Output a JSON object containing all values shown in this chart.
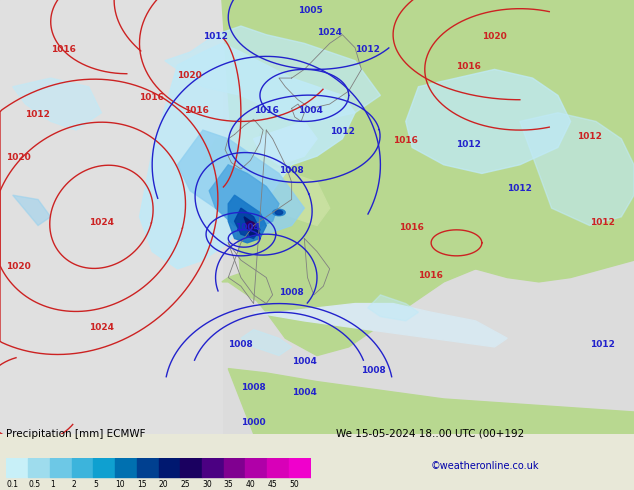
{
  "title_left": "Precipitation [mm] ECMWF",
  "title_right": "We 15-05-2024 18..00 UTC (00+192",
  "watermark": "©weatheronline.co.uk",
  "colorbar_labels": [
    "0.1",
    "0.5",
    "1",
    "2",
    "5",
    "10",
    "15",
    "20",
    "25",
    "30",
    "35",
    "40",
    "45",
    "50"
  ],
  "colorbar_colors": [
    "#c8f0f8",
    "#9edced",
    "#6dc8e6",
    "#3cb4dc",
    "#0fa0d0",
    "#0070b0",
    "#004090",
    "#001870",
    "#1a0060",
    "#4b0082",
    "#800090",
    "#b000a8",
    "#d800b8",
    "#f000cc"
  ],
  "bg_color": "#e8e8d8",
  "land_green": "#b8d890",
  "land_light_green": "#c8e0a0",
  "ocean_grey": "#dcdcdc",
  "ocean_light": "#e8e8e8",
  "precip_c1": "#c0eaf8",
  "precip_c2": "#90d0f0",
  "precip_c3": "#50a8e0",
  "precip_c4": "#1878c8",
  "precip_c5": "#0040a0",
  "precip_c6": "#001870",
  "precip_c7": "#300060",
  "blue_isobar": "#2222cc",
  "red_isobar": "#cc2222",
  "figsize": [
    6.34,
    4.9
  ],
  "dpi": 100
}
